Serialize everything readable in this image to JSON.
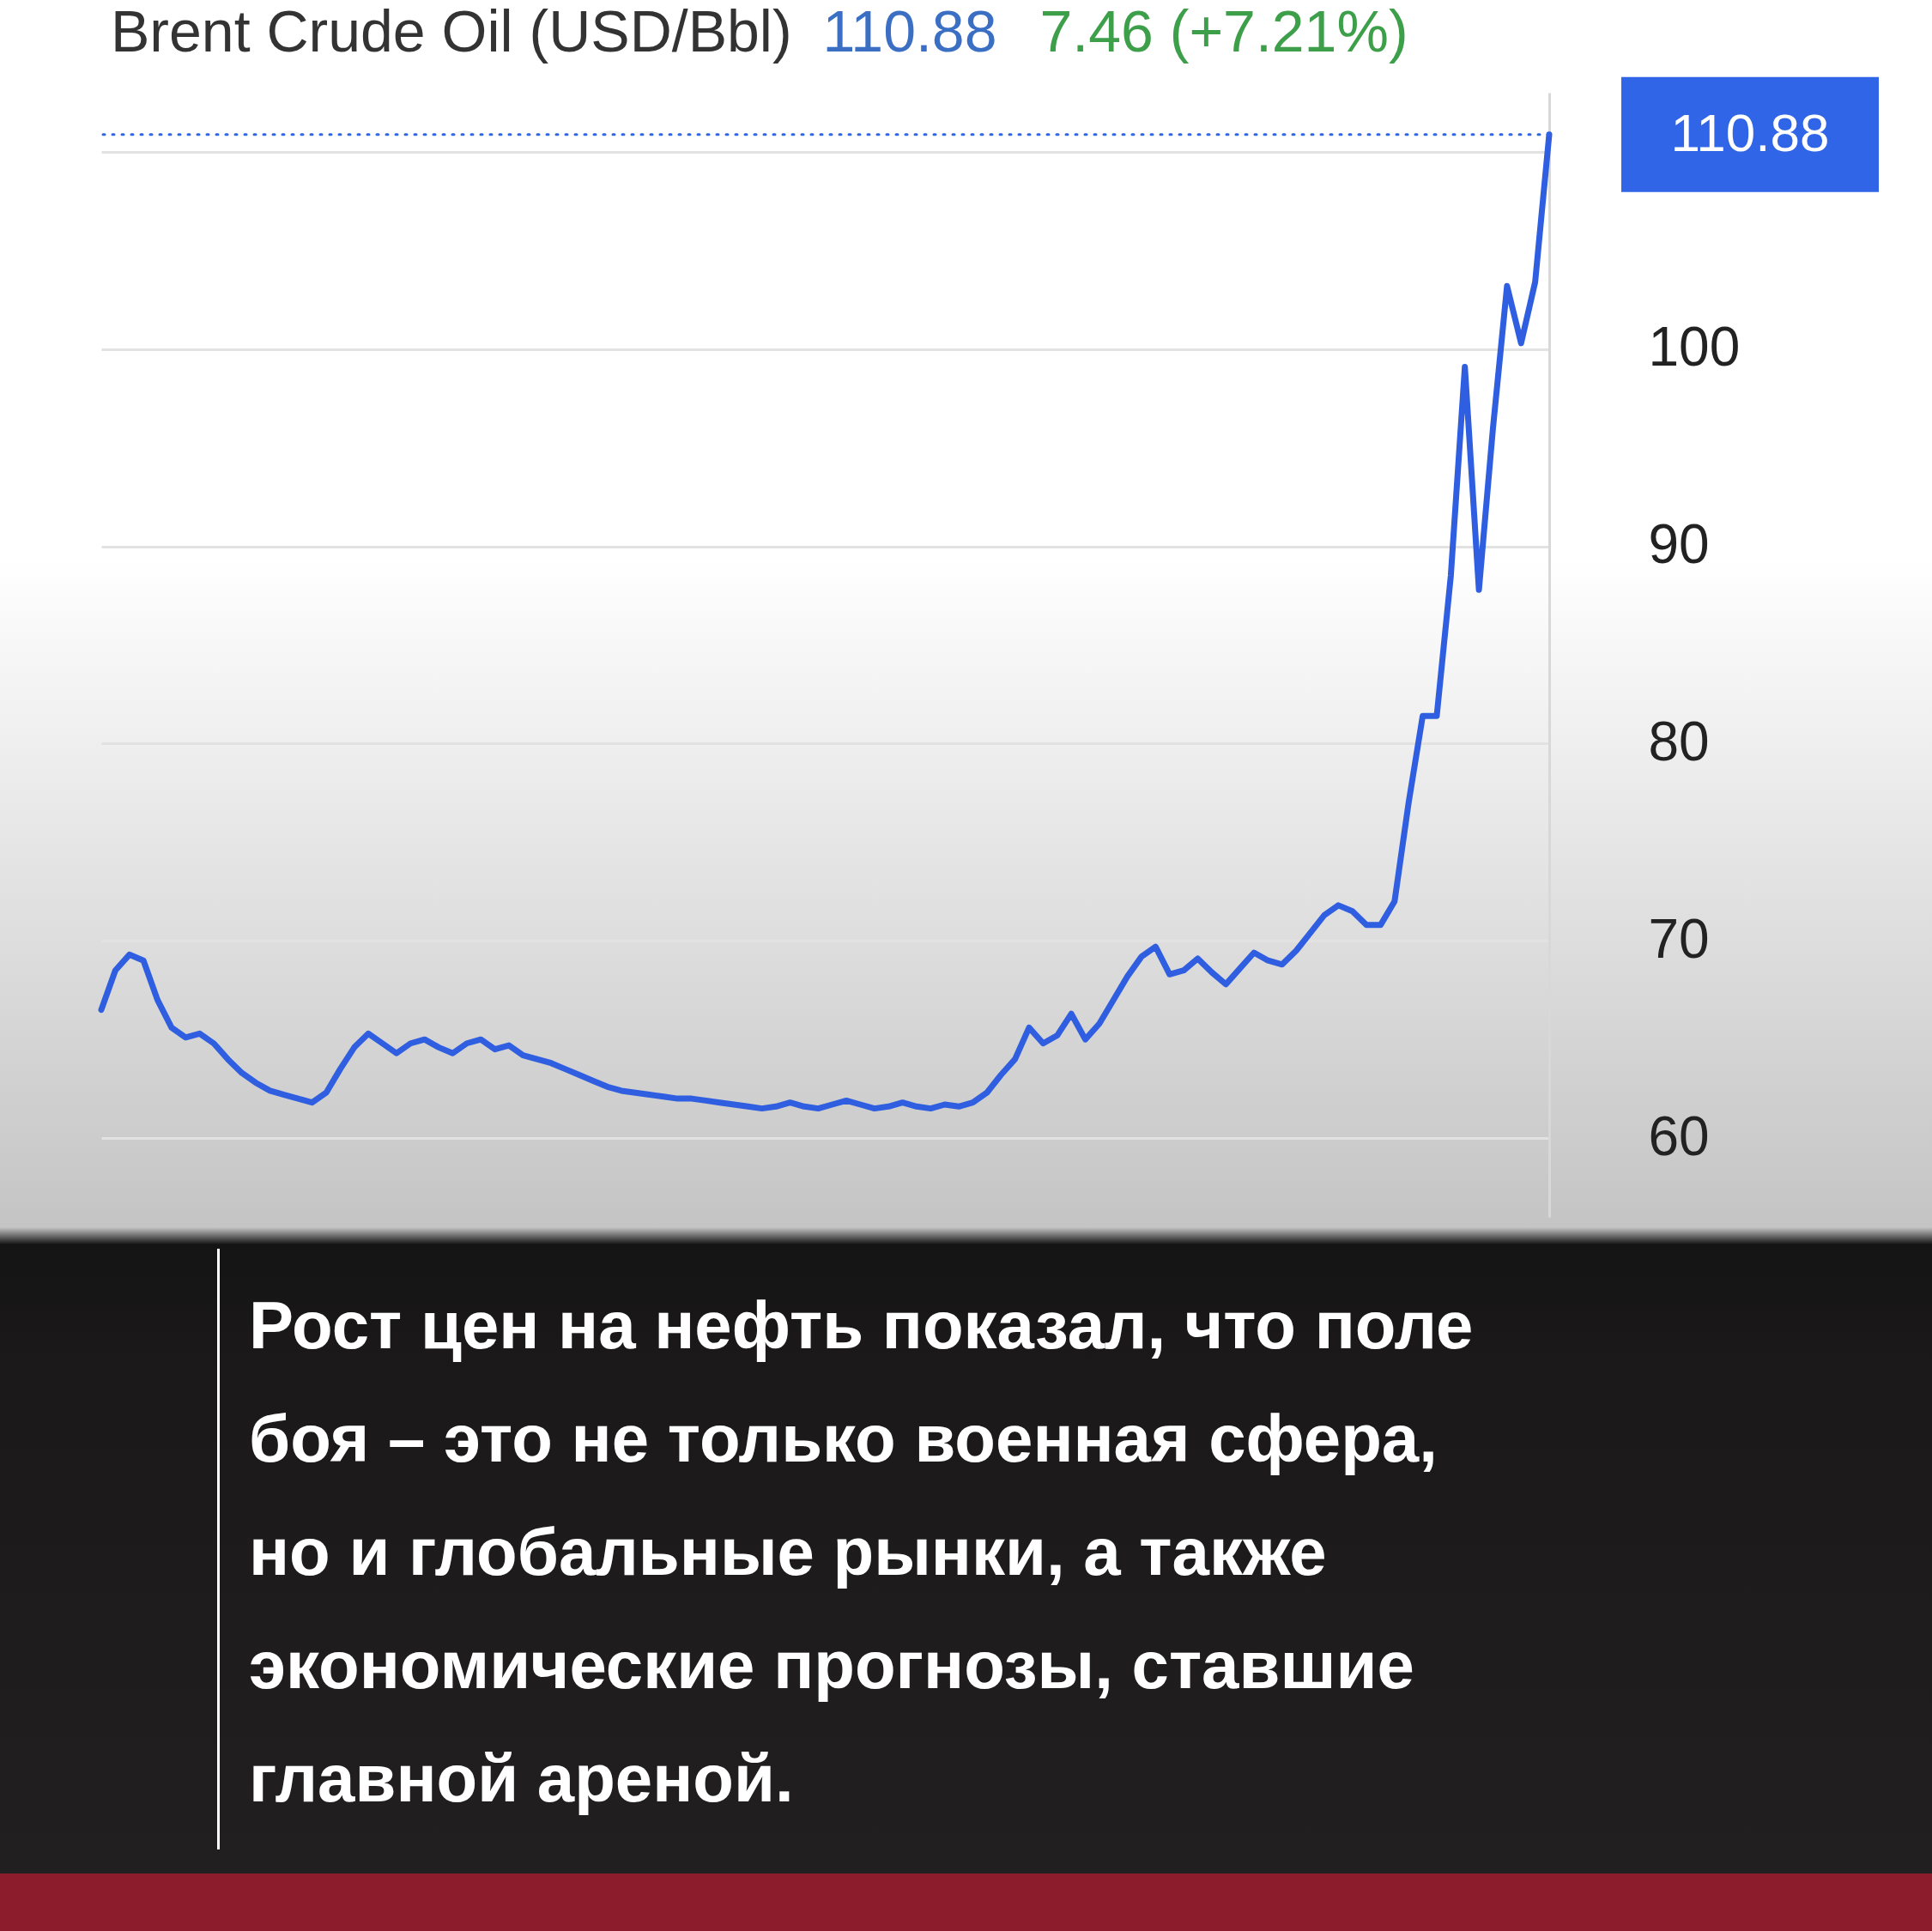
{
  "chart_data": {
    "type": "line",
    "title": "Brent Crude Oil (USD/Bbl)",
    "categories": [
      null,
      null,
      null,
      null,
      null,
      null,
      null,
      null,
      null,
      null,
      null,
      null,
      null,
      null,
      null,
      null,
      null,
      null,
      null,
      null,
      null,
      null,
      null,
      null,
      null,
      null,
      null,
      null,
      null,
      null,
      null,
      null,
      null,
      null,
      null,
      null,
      null,
      null,
      null,
      null,
      null,
      null,
      null,
      null,
      null,
      null,
      null,
      null,
      null,
      null,
      null,
      null,
      null,
      null,
      null,
      null,
      null,
      null,
      null,
      null,
      null,
      null,
      null,
      null,
      null,
      null,
      null,
      null,
      null,
      null,
      null,
      null,
      null,
      null,
      null,
      null,
      null,
      null,
      null,
      null,
      null,
      null,
      null,
      null,
      null,
      null,
      null,
      null,
      null,
      null,
      null,
      null,
      null,
      null,
      null,
      null,
      null,
      null,
      null,
      null,
      null,
      null,
      null,
      null
    ],
    "series": [
      {
        "color": "#2f5fe0",
        "values": [
          66.5,
          68.5,
          69.3,
          69.0,
          67.0,
          65.6,
          65.1,
          65.3,
          64.8,
          64.0,
          63.3,
          62.8,
          62.4,
          62.2,
          62.0,
          61.8,
          62.3,
          63.5,
          64.6,
          65.3,
          64.8,
          64.3,
          64.8,
          65.0,
          64.6,
          64.3,
          64.8,
          65.0,
          64.5,
          64.7,
          64.2,
          64.0,
          63.8,
          63.5,
          63.2,
          62.9,
          62.6,
          62.4,
          62.3,
          62.2,
          62.1,
          62.0,
          62.0,
          61.9,
          61.8,
          61.7,
          61.6,
          61.5,
          61.6,
          61.8,
          61.6,
          61.5,
          61.7,
          61.9,
          61.7,
          61.5,
          61.6,
          61.8,
          61.6,
          61.5,
          61.7,
          61.6,
          61.8,
          62.3,
          63.2,
          64.0,
          65.6,
          64.8,
          65.2,
          66.3,
          65.0,
          65.8,
          67.0,
          68.2,
          69.2,
          69.7,
          68.3,
          68.5,
          69.1,
          68.4,
          67.8,
          68.6,
          69.4,
          69.0,
          68.8,
          69.5,
          70.4,
          71.3,
          71.8,
          71.5,
          70.8,
          70.8,
          72.0,
          77.0,
          81.4,
          81.4,
          88.5,
          99.1,
          87.8,
          96.0,
          103.2,
          100.3,
          103.4,
          110.88
        ]
      }
    ],
    "ylim": [
      56,
      113
    ],
    "yticks": [
      60,
      70,
      80,
      90,
      100,
      {
        "value": 110,
        "label": null
      }
    ],
    "grid": "y",
    "tick_labels": "y",
    "line_style": "solid",
    "ref_lines": [
      {
        "axis": "y",
        "value": 110.88,
        "label": "110.88",
        "color": "#2f65e6",
        "line_style": "dotted"
      }
    ],
    "annotations": [
      "110.88",
      "7.46 (+7.21%)",
      "Рост цен на нефть показал, что поле боя – это не только военная сфера, но и глобальные рынки, а также экономические прогнозы, ставшие главной ареной."
    ]
  }
}
